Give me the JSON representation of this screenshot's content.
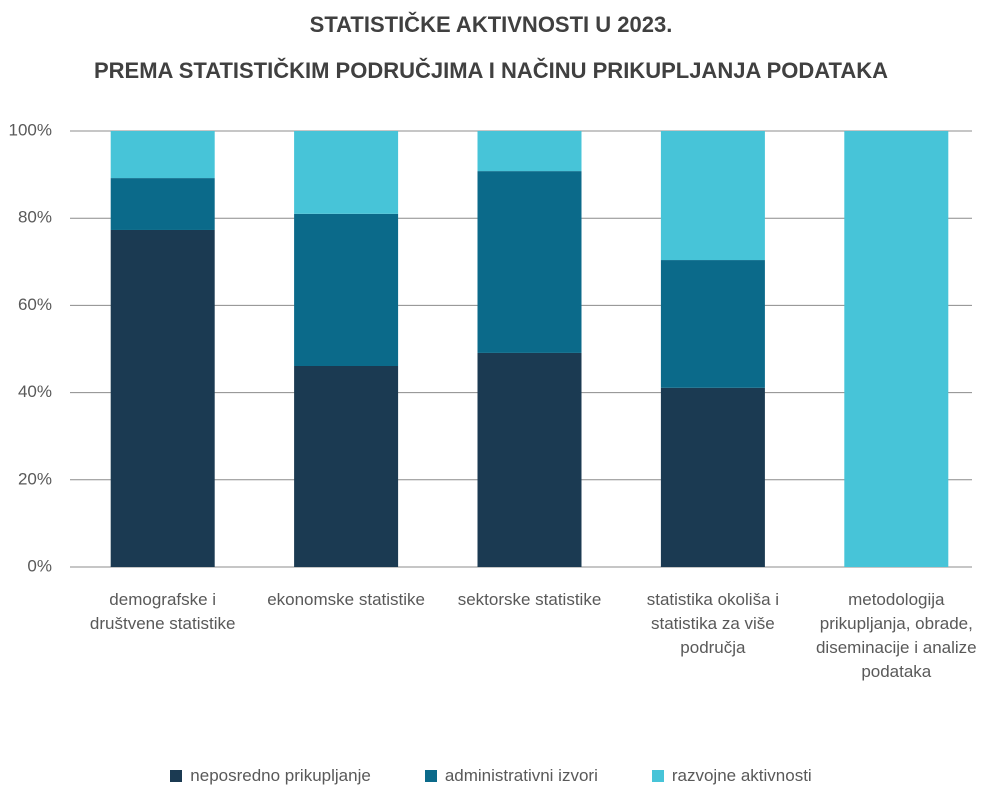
{
  "chart_data": {
    "type": "stacked_bar",
    "title": "STATISTIČKE AKTIVNOSTI U 2023.",
    "subtitle": "PREMA STATISTIČKIM PODRUČJIMA I NAČINU PRIKUPLJANJA PODATAKA",
    "categories": [
      "demografske i društvene statistike",
      "ekonomske statistike",
      "sektorske statistike",
      "statistika okoliša i statistika za više područja",
      "metodologija prikupljanja, obrade, diseminacije i analize podataka"
    ],
    "series": [
      {
        "name": "neposredno prikupljanje",
        "color": "#1b3a52",
        "values": [
          77.3,
          46.1,
          49.1,
          41.1,
          0
        ]
      },
      {
        "name": "administrativni izvori",
        "color": "#0b6a8a",
        "values": [
          11.9,
          34.9,
          41.7,
          29.3,
          0
        ]
      },
      {
        "name": "razvojne aktivnosti",
        "color": "#47c4d8",
        "values": [
          10.8,
          19.0,
          9.2,
          29.6,
          100
        ]
      }
    ],
    "ylim": [
      0,
      100
    ],
    "yticks": [
      {
        "value": 0,
        "label": "0%"
      },
      {
        "value": 20,
        "label": "20%"
      },
      {
        "value": 40,
        "label": "40%"
      },
      {
        "value": 60,
        "label": "60%"
      },
      {
        "value": 80,
        "label": "80%"
      },
      {
        "value": 100,
        "label": "100%"
      }
    ],
    "grid": true,
    "legend": "bottom"
  }
}
